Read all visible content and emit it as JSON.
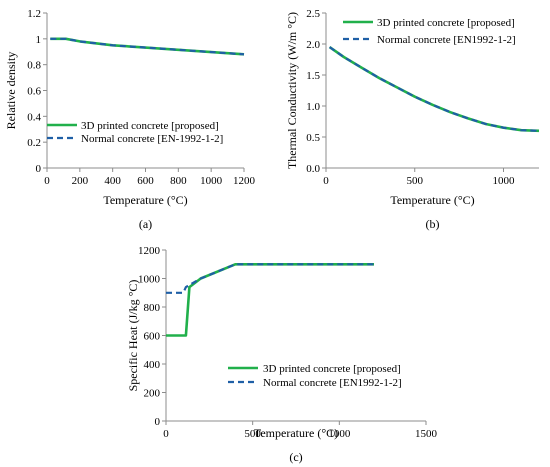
{
  "colors": {
    "proposed": "#21b04b",
    "normal": "#1f5fa6",
    "axis": "#8c8c8c",
    "background": "#ffffff"
  },
  "chart_data": [
    {
      "id": "a",
      "type": "line",
      "panel_label": "(a)",
      "xlabel": "Temperature (°C)",
      "ylabel": "Relative density",
      "xlim": [
        0,
        1200
      ],
      "ylim": [
        0,
        1.2
      ],
      "xticks": [
        0,
        200,
        400,
        600,
        800,
        1000,
        1200
      ],
      "yticks": [
        0,
        0.2,
        0.4,
        0.6,
        0.8,
        1,
        1.2
      ],
      "ytick_labels": [
        "0",
        "0.2",
        "0.4",
        "0.6",
        "0.8",
        "1",
        "1.2"
      ],
      "grid": false,
      "legend_position": "bottom-left",
      "series": [
        {
          "name": "3D printed concrete [proposed]",
          "style": "solid",
          "color_key": "proposed",
          "x": [
            20,
            115,
            200,
            400,
            1200
          ],
          "y": [
            1.0,
            1.0,
            0.98,
            0.95,
            0.88
          ]
        },
        {
          "name": "Normal  concrete [EN-1992-1-2]",
          "style": "dashed",
          "color_key": "normal",
          "x": [
            20,
            115,
            200,
            400,
            1200
          ],
          "y": [
            1.0,
            1.0,
            0.98,
            0.95,
            0.88
          ]
        }
      ]
    },
    {
      "id": "b",
      "type": "line",
      "panel_label": "(b)",
      "xlabel": "Temperature (°C)",
      "ylabel": "Thermal Conductivity (W/m °C)",
      "xlim": [
        0,
        1200
      ],
      "ylim": [
        0,
        2.5
      ],
      "xticks": [
        0,
        500,
        1000
      ],
      "yticks": [
        0,
        0.5,
        1,
        1.5,
        2,
        2.5
      ],
      "ytick_labels": [
        "0.0",
        "0.5",
        "1.0",
        "1.5",
        "2.0",
        "2.5"
      ],
      "grid": false,
      "legend_position": "top-right",
      "series": [
        {
          "name": "3D printed concrete [proposed]",
          "style": "solid",
          "color_key": "proposed",
          "x": [
            20,
            100,
            200,
            300,
            400,
            500,
            600,
            700,
            800,
            900,
            1000,
            1100,
            1200
          ],
          "y": [
            1.95,
            1.79,
            1.62,
            1.45,
            1.3,
            1.15,
            1.02,
            0.9,
            0.8,
            0.71,
            0.65,
            0.61,
            0.6
          ]
        },
        {
          "name": "Normal concrete [EN1992-1-2]",
          "style": "dashed",
          "color_key": "normal",
          "x": [
            20,
            100,
            200,
            300,
            400,
            500,
            600,
            700,
            800,
            900,
            1000,
            1100,
            1200
          ],
          "y": [
            1.95,
            1.79,
            1.62,
            1.45,
            1.3,
            1.15,
            1.02,
            0.9,
            0.8,
            0.71,
            0.65,
            0.61,
            0.6
          ]
        }
      ]
    },
    {
      "id": "c",
      "type": "line",
      "panel_label": "(c)",
      "xlabel": "Temperature (°C)",
      "ylabel": "Specific Heat (J/kg °C)",
      "xlim": [
        0,
        1500
      ],
      "ylim": [
        0,
        1200
      ],
      "xticks": [
        0,
        500,
        1000,
        1500
      ],
      "yticks": [
        0,
        200,
        400,
        600,
        800,
        1000,
        1200
      ],
      "ytick_labels": [
        "0",
        "200",
        "400",
        "600",
        "800",
        "1000",
        "1200"
      ],
      "grid": false,
      "legend_position": "bottom-right",
      "series": [
        {
          "name": "3D printed concrete [proposed]",
          "style": "solid",
          "color_key": "proposed",
          "x": [
            0,
            115,
            135,
            200,
            400,
            1200
          ],
          "y": [
            600,
            600,
            940,
            1000,
            1100,
            1100
          ]
        },
        {
          "name": "Normal concrete [EN1992-1-2]",
          "style": "dashed",
          "color_key": "normal",
          "x": [
            0,
            100,
            115,
            200,
            400,
            1200
          ],
          "y": [
            900,
            900,
            940,
            1000,
            1100,
            1100
          ]
        }
      ]
    }
  ]
}
